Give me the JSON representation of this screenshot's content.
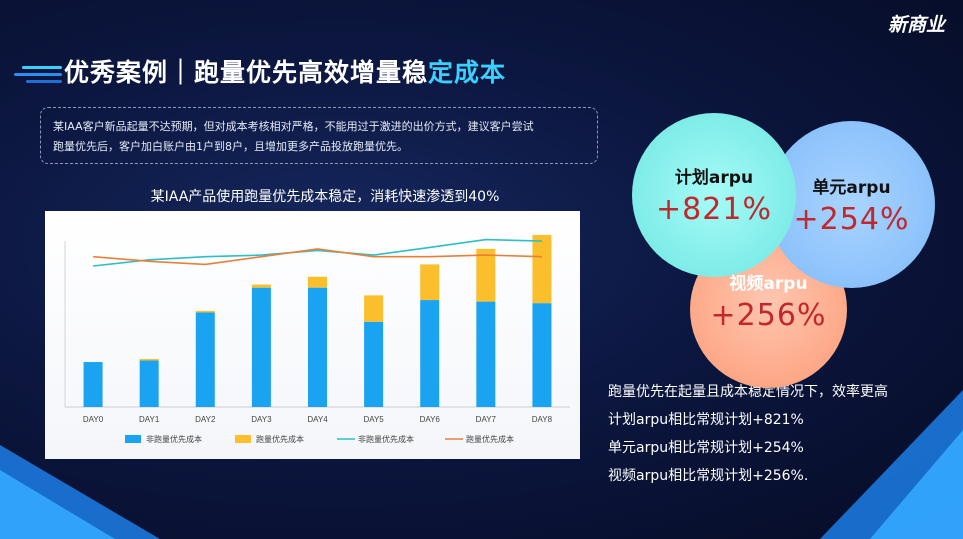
{
  "brand": {
    "logo_text": "新商业"
  },
  "header": {
    "title_main": "优秀案例｜跑量优先高效增量稳",
    "title_accent": "定",
    "title_tail": "成本"
  },
  "description": {
    "line1": "某IAA客户新品起量不达预期，但对成本考核相对严格，不能用过于激进的出价方式，建议客户尝试",
    "line2": "跑量优先后，客户加白账户由1户到8户，且增加更多产品投放跑量优先。"
  },
  "chart_title": "某IAA产品使用跑量优先成本稳定，消耗快速渗透到40%",
  "chart_data": {
    "type": "bar",
    "stacked": true,
    "categories": [
      "DAY0",
      "DAY1",
      "DAY2",
      "DAY3",
      "DAY4",
      "DAY5",
      "DAY6",
      "DAY7",
      "DAY8"
    ],
    "series": [
      {
        "name": "非跑量优先成本",
        "kind": "bar",
        "color": "#1aa3f0",
        "values": [
          29,
          30,
          61,
          77,
          77,
          55,
          69,
          68,
          67
        ]
      },
      {
        "name": "跑量优先成本",
        "kind": "bar",
        "color": "#fbbe2d",
        "values": [
          0,
          1,
          1,
          2,
          7,
          17,
          23,
          34,
          44
        ]
      },
      {
        "name": "非跑量优先成本",
        "kind": "line",
        "color": "#2bc0c8",
        "values": [
          91,
          95,
          97,
          98,
          101,
          98,
          103,
          108,
          107
        ]
      },
      {
        "name": "跑量优先成本",
        "kind": "line",
        "color": "#ea7f3a",
        "values": [
          97,
          94,
          92,
          97,
          102,
          97,
          97,
          98,
          97
        ]
      }
    ],
    "ylim": [
      0,
      120
    ],
    "grid": false,
    "legend": "bottom"
  },
  "bubbles": {
    "plan": {
      "label": "计划arpu",
      "value": "+821%"
    },
    "unit": {
      "label": "单元arpu",
      "value": "+254%"
    },
    "video": {
      "label": "视频arpu",
      "value": "+256%"
    }
  },
  "summary": {
    "line1": "跑量优先在起量且成本稳定情况下，效率更高",
    "line2": "计划arpu相比常规计划+821%",
    "line3": "单元arpu相比常规计划+254%",
    "line4": "视频arpu相比常规计划+256%."
  },
  "colors": {
    "accent": "#3ad0ff",
    "highlight_red": "#c0282d"
  }
}
